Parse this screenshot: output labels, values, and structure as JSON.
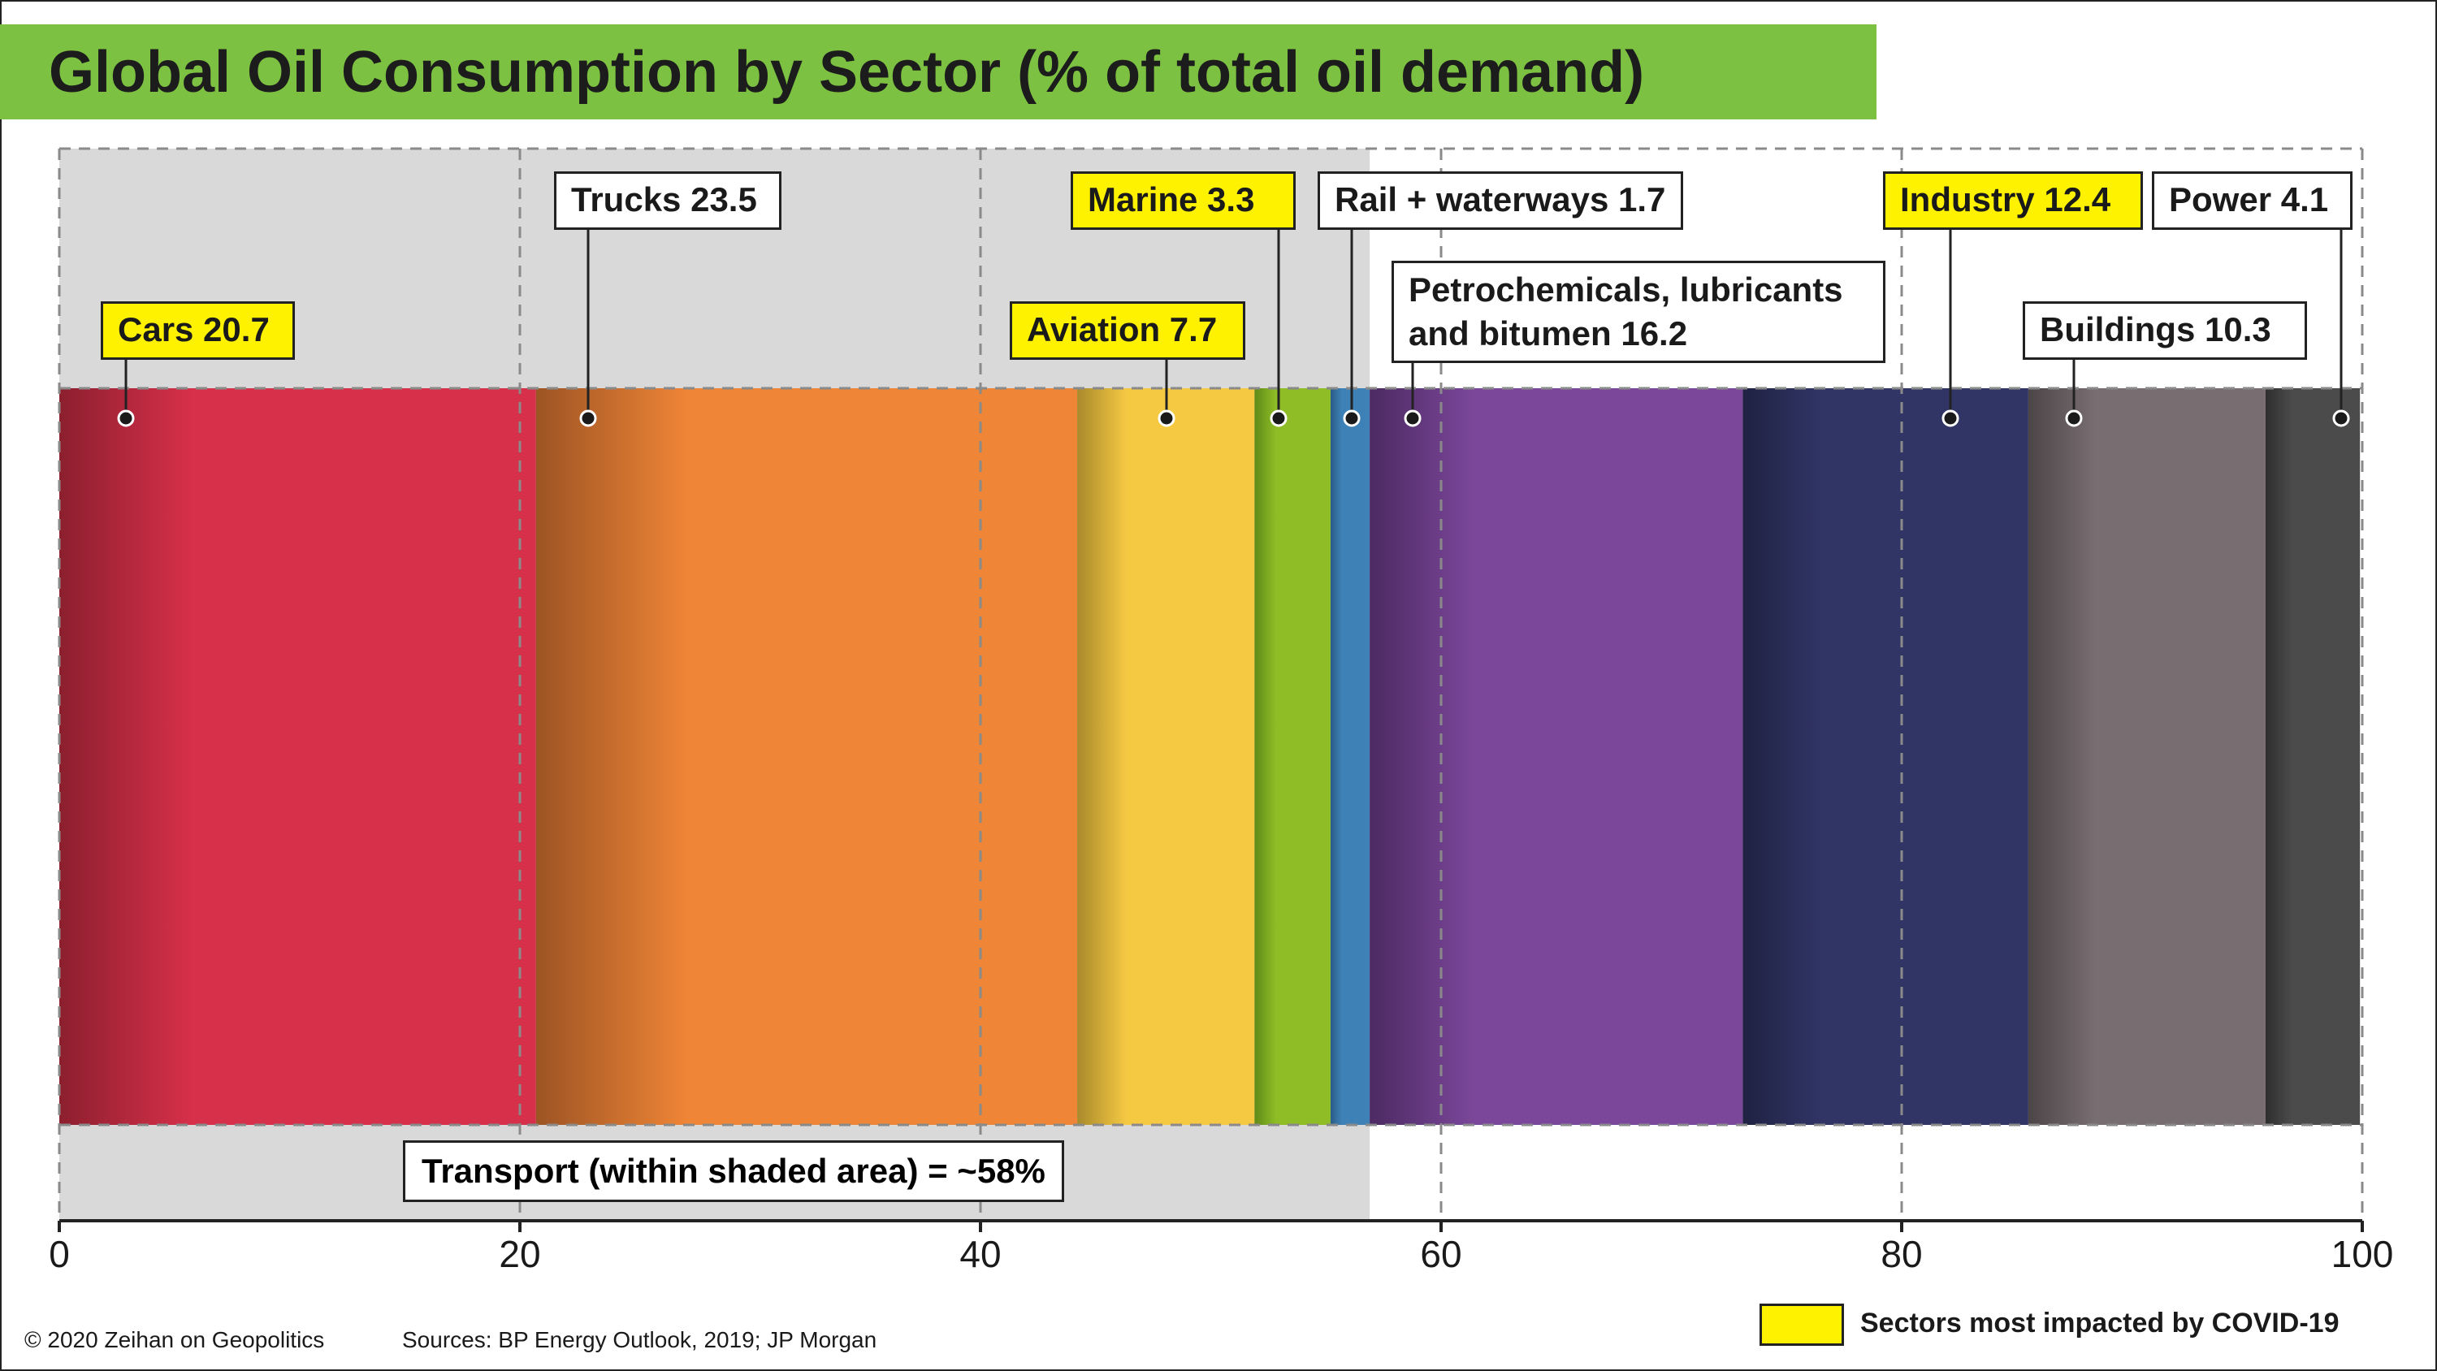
{
  "title": "Global Oil Consumption by Sector (% of total oil demand)",
  "chart_data": {
    "type": "stacked-bar",
    "orientation": "horizontal",
    "xlim": [
      0,
      100
    ],
    "x_ticks": [
      "0",
      "20",
      "40",
      "60",
      "80",
      "100"
    ],
    "grid": true,
    "segments": [
      {
        "name": "Cars",
        "value": 20.7,
        "label": "Cars 20.7",
        "covid_impacted": true,
        "color": "#d7304a",
        "dark": "#8c1f2e"
      },
      {
        "name": "Trucks",
        "value": 23.5,
        "label": "Trucks 23.5",
        "covid_impacted": false,
        "color": "#ef8536",
        "dark": "#9d5424"
      },
      {
        "name": "Aviation",
        "value": 7.7,
        "label": "Aviation 7.7",
        "covid_impacted": true,
        "color": "#f6c943",
        "dark": "#a98a2c"
      },
      {
        "name": "Marine",
        "value": 3.3,
        "label": "Marine 3.3",
        "covid_impacted": true,
        "color": "#8ebd26",
        "dark": "#5e8a18"
      },
      {
        "name": "Rail + waterways",
        "value": 1.7,
        "label": "Rail + waterways 1.7",
        "covid_impacted": false,
        "color": "#3d81b6",
        "dark": "#2a5c86"
      },
      {
        "name": "Petrochemicals, lubricants and bitumen",
        "value": 16.2,
        "label_lines": [
          "Petrochemicals, lubricants",
          "and bitumen 16.2"
        ],
        "covid_impacted": false,
        "color": "#7b479a",
        "dark": "#4c2a62"
      },
      {
        "name": "Industry",
        "value": 12.4,
        "label": "Industry 12.4",
        "covid_impacted": true,
        "color": "#313566",
        "dark": "#1f2242"
      },
      {
        "name": "Buildings",
        "value": 10.3,
        "label": "Buildings 10.3",
        "covid_impacted": false,
        "color": "#786d71",
        "dark": "#4c4548"
      },
      {
        "name": "Power",
        "value": 4.1,
        "label": "Power 4.1",
        "covid_impacted": false,
        "color": "#4b4b4b",
        "dark": "#2e2e2e"
      }
    ],
    "shaded_region": {
      "from": 0,
      "to": 56.9,
      "label": "Transport (within shaded area) = ~58%"
    }
  },
  "legend": {
    "swatch_color": "#fff200",
    "label": "Sectors most impacted by COVID-19"
  },
  "footer": {
    "copyright": "© 2020 Zeihan on Geopolitics",
    "sources": "Sources: BP Energy Outlook, 2019; JP Morgan"
  }
}
